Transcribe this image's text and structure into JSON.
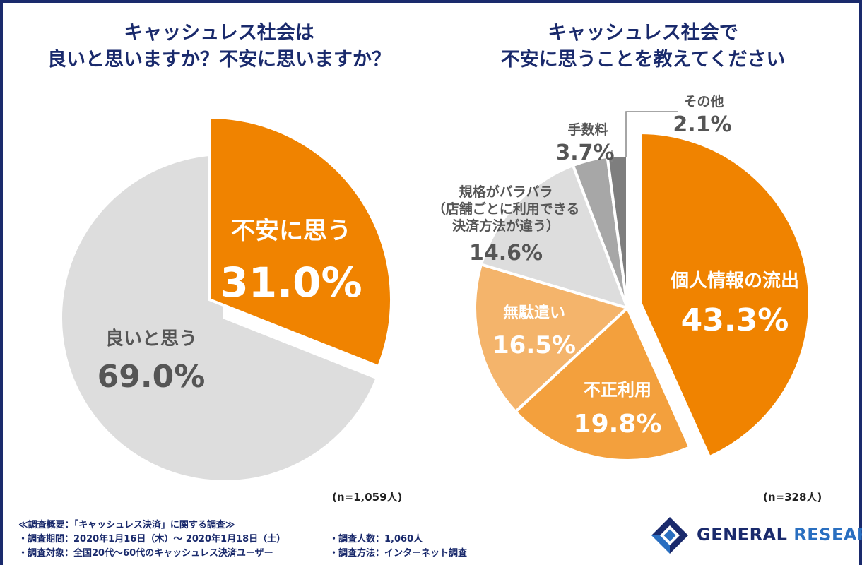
{
  "colors": {
    "navy": "#1a2a6c",
    "orange": "#f08300",
    "orange_mid": "#f3a03d",
    "orange_light": "#f4b46b",
    "gray_light": "#dddddd",
    "gray_mid": "#a7a7a7",
    "gray_dark": "#7e7e7e",
    "text_dark": "#555555"
  },
  "titles": {
    "left": [
      "キャッシュレス社会は",
      "良いと思いますか？不安に思いますか？"
    ],
    "right": [
      "キャッシュレス社会で",
      "不安に思うことを教えてください"
    ]
  },
  "chart_data": [
    {
      "type": "pie",
      "title": "キャッシュレス社会は 良いと思いますか？不安に思いますか？",
      "n_label": "(n=1,059人)",
      "slices": [
        {
          "label": "不安に思う",
          "value_label": "31.0%",
          "value": 31.0,
          "color": "#f08300",
          "exploded": true
        },
        {
          "label": "良いと思う",
          "value_label": "69.0%",
          "value": 69.0,
          "color": "#dddddd",
          "exploded": false
        }
      ]
    },
    {
      "type": "pie",
      "title": "キャッシュレス社会で 不安に思うことを教えてください",
      "n_label": "(n=328人)",
      "slices": [
        {
          "label": "個人情報の流出",
          "value_label": "43.3%",
          "value": 43.3,
          "color": "#f08300",
          "exploded": true
        },
        {
          "label": "不正利用",
          "value_label": "19.8%",
          "value": 19.8,
          "color": "#f3a03d",
          "exploded": false
        },
        {
          "label": "無駄遣い",
          "value_label": "16.5%",
          "value": 16.5,
          "color": "#f4b46b",
          "exploded": false
        },
        {
          "label": "規格がバラバラ（店舗ごとに利用できる決済方法が違う）",
          "label_lines": [
            "規格がバラバラ",
            "（店舗ごとに利用できる",
            "決済方法が違う）"
          ],
          "value_label": "14.6%",
          "value": 14.6,
          "color": "#dddddd",
          "exploded": false
        },
        {
          "label": "手数料",
          "value_label": "3.7%",
          "value": 3.7,
          "color": "#a7a7a7",
          "exploded": false
        },
        {
          "label": "その他",
          "value_label": "2.1%",
          "value": 2.1,
          "color": "#7e7e7e",
          "exploded": false
        }
      ]
    }
  ],
  "notes": {
    "heading": "≪調査概要：「キャッシュレス決済」に関する調査≫",
    "period": "・調査期間：2020年1月16日（木）～ 2020年1月18日（土）",
    "subjects": "・調査対象：全国20代～60代のキャッシュレス決済ユーザー",
    "count": "・調査人数：1,060人",
    "method": "・調査方法：インターネット調査"
  },
  "logo": {
    "word1": "GENERAL",
    "word2": "RESEARCH"
  }
}
